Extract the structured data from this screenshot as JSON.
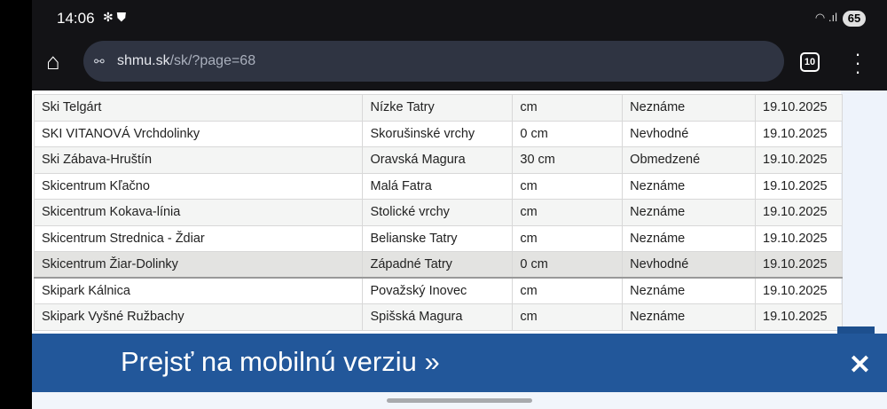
{
  "status": {
    "time": "14:06",
    "icons": [
      "fan-icon",
      "shield-icon"
    ],
    "battery": "65"
  },
  "browser": {
    "url_host": "shmu.sk",
    "url_path": "/sk/?page=68",
    "tab_count": "10"
  },
  "table": {
    "rows": [
      [
        "Ski Telgárt",
        "Nízke Tatry",
        "cm",
        "Neznáme",
        "19.10.2025"
      ],
      [
        "SKI VITANOVÁ Vrchdolinky",
        "Skorušinské vrchy",
        "0 cm",
        "Nevhodné",
        "19.10.2025"
      ],
      [
        "Ski Zábava-Hruštín",
        "Oravská Magura",
        "30 cm",
        "Obmedzené",
        "19.10.2025"
      ],
      [
        "Skicentrum Kľačno",
        "Malá Fatra",
        "cm",
        "Neznáme",
        "19.10.2025"
      ],
      [
        "Skicentrum Kokava-línia",
        "Stolické vrchy",
        "cm",
        "Neznáme",
        "19.10.2025"
      ],
      [
        "Skicentrum Strednica - Ždiar",
        "Belianske Tatry",
        "cm",
        "Neznáme",
        "19.10.2025"
      ],
      [
        "Skicentrum Žiar-Dolinky",
        "Západné Tatry",
        "0 cm",
        "Nevhodné",
        "19.10.2025"
      ],
      [
        "Skipark Kálnica",
        "Považský Inovec",
        "cm",
        "Neznáme",
        "19.10.2025"
      ],
      [
        "Skipark Vyšné Ružbachy",
        "Spišská Magura",
        "cm",
        "Neznáme",
        "19.10.2025"
      ]
    ]
  },
  "banner": {
    "text": "Prejsť na mobilnú verziu »",
    "close": "✕",
    "color": "#22579a"
  }
}
